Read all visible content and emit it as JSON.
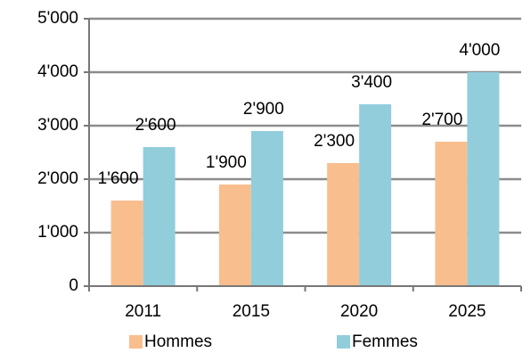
{
  "chart_data": {
    "type": "bar",
    "categories": [
      "2011",
      "2015",
      "2020",
      "2025"
    ],
    "series": [
      {
        "name": "Hommes",
        "color": "#f9be8e",
        "values": [
          1600,
          1900,
          2300,
          2700
        ],
        "value_labels": [
          "1'600",
          "1'900",
          "2'300",
          "2'700"
        ]
      },
      {
        "name": "Femmes",
        "color": "#92cddc",
        "values": [
          2600,
          2900,
          3400,
          4000
        ],
        "value_labels": [
          "2'600",
          "2'900",
          "3'400",
          "4'000"
        ]
      }
    ],
    "ylim": [
      0,
      5000
    ],
    "yticks": [
      0,
      {
        "value": 1000,
        "label": "1'000"
      },
      {
        "value": 2000,
        "label": "2'000"
      },
      {
        "value": 3000,
        "label": "3'000"
      },
      {
        "value": 4000,
        "label": "4'000"
      },
      {
        "value": 5000,
        "label": "5'000"
      }
    ],
    "grid": true
  }
}
